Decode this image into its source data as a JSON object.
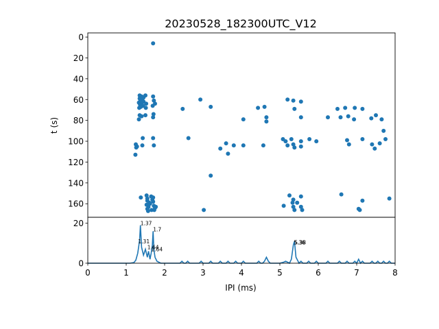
{
  "title": "20230528_182300UTC_V12",
  "colors": {
    "series": "#1f77b4",
    "axes": "#000000"
  },
  "chart_data": [
    {
      "type": "scatter",
      "title": "20230528_182300UTC_V12",
      "ylabel": "t (s)",
      "xlabel": "",
      "xlim": [
        0,
        8
      ],
      "ylim": [
        173,
        -4
      ],
      "y_inverted": true,
      "yticks": [
        "0",
        "20",
        "40",
        "60",
        "80",
        "100",
        "120",
        "140",
        "160"
      ],
      "grid": false,
      "points": [
        [
          1.7,
          6
        ],
        [
          1.35,
          56
        ],
        [
          1.4,
          57
        ],
        [
          1.45,
          58
        ],
        [
          1.35,
          59
        ],
        [
          1.42,
          60
        ],
        [
          1.37,
          61
        ],
        [
          1.45,
          62
        ],
        [
          1.33,
          63
        ],
        [
          1.4,
          64
        ],
        [
          1.36,
          65
        ],
        [
          1.44,
          66
        ],
        [
          1.38,
          67
        ],
        [
          1.34,
          68
        ],
        [
          1.5,
          56
        ],
        [
          1.52,
          64
        ],
        [
          1.51,
          68
        ],
        [
          1.35,
          75
        ],
        [
          1.4,
          76
        ],
        [
          1.5,
          75
        ],
        [
          1.33,
          79
        ],
        [
          1.25,
          103
        ],
        [
          1.28,
          105
        ],
        [
          1.26,
          106
        ],
        [
          1.24,
          113
        ],
        [
          1.43,
          97
        ],
        [
          1.42,
          104
        ],
        [
          1.7,
          97
        ],
        [
          1.72,
          104
        ],
        [
          1.7,
          57
        ],
        [
          1.72,
          61
        ],
        [
          1.75,
          64
        ],
        [
          1.69,
          66
        ],
        [
          1.71,
          74
        ],
        [
          1.7,
          77
        ],
        [
          1.38,
          154
        ],
        [
          1.53,
          152
        ],
        [
          1.55,
          155
        ],
        [
          1.55,
          157
        ],
        [
          1.6,
          159
        ],
        [
          1.53,
          161
        ],
        [
          1.58,
          163
        ],
        [
          1.55,
          165
        ],
        [
          1.57,
          167
        ],
        [
          1.62,
          160
        ],
        [
          1.65,
          153
        ],
        [
          1.68,
          156
        ],
        [
          1.7,
          158
        ],
        [
          1.72,
          162
        ],
        [
          1.75,
          164
        ],
        [
          1.66,
          166
        ],
        [
          1.73,
          166
        ],
        [
          1.77,
          163
        ],
        [
          1.7,
          154
        ],
        [
          2.47,
          69
        ],
        [
          2.62,
          97
        ],
        [
          2.93,
          60
        ],
        [
          3.2,
          67
        ],
        [
          3.2,
          133
        ],
        [
          3.02,
          166
        ],
        [
          3.45,
          107
        ],
        [
          3.6,
          102
        ],
        [
          3.65,
          112
        ],
        [
          3.8,
          104
        ],
        [
          4.05,
          79
        ],
        [
          4.05,
          104
        ],
        [
          4.43,
          68
        ],
        [
          4.57,
          104
        ],
        [
          4.6,
          67
        ],
        [
          4.65,
          77
        ],
        [
          4.65,
          81
        ],
        [
          5.08,
          98
        ],
        [
          5.15,
          100
        ],
        [
          5.2,
          60
        ],
        [
          5.2,
          104
        ],
        [
          5.3,
          98
        ],
        [
          5.35,
          103
        ],
        [
          5.38,
          106
        ],
        [
          5.35,
          61
        ],
        [
          5.38,
          69
        ],
        [
          5.55,
          62
        ],
        [
          5.55,
          77
        ],
        [
          5.55,
          100
        ],
        [
          5.55,
          105
        ],
        [
          5.77,
          98
        ],
        [
          5.95,
          100
        ],
        [
          5.1,
          162
        ],
        [
          5.25,
          152
        ],
        [
          5.35,
          156
        ],
        [
          5.33,
          159
        ],
        [
          5.35,
          163
        ],
        [
          5.38,
          166
        ],
        [
          5.45,
          159
        ],
        [
          5.55,
          153
        ],
        [
          5.55,
          163
        ],
        [
          5.58,
          166
        ],
        [
          6.25,
          77
        ],
        [
          6.5,
          69
        ],
        [
          6.58,
          77
        ],
        [
          6.7,
          68
        ],
        [
          6.75,
          99
        ],
        [
          6.8,
          103
        ],
        [
          6.78,
          76
        ],
        [
          6.93,
          79
        ],
        [
          6.95,
          68
        ],
        [
          7.15,
          69
        ],
        [
          7.15,
          98
        ],
        [
          7.38,
          78
        ],
        [
          7.4,
          103
        ],
        [
          7.47,
          107
        ],
        [
          7.5,
          75
        ],
        [
          7.6,
          102
        ],
        [
          7.65,
          79
        ],
        [
          7.7,
          90
        ],
        [
          7.75,
          98
        ],
        [
          6.6,
          151
        ],
        [
          7.05,
          165
        ],
        [
          7.08,
          166
        ],
        [
          7.15,
          157
        ],
        [
          7.85,
          155
        ]
      ]
    },
    {
      "type": "line",
      "xlabel": "IPI (ms)",
      "ylabel": "",
      "xlim": [
        0,
        8
      ],
      "ylim": [
        0,
        23
      ],
      "xticks": [
        "0",
        "1",
        "2",
        "3",
        "4",
        "5",
        "6",
        "7",
        "8"
      ],
      "yticks": [
        "0",
        "20"
      ],
      "grid": false,
      "x": [
        0,
        1.1,
        1.2,
        1.25,
        1.3,
        1.33,
        1.35,
        1.37,
        1.4,
        1.45,
        1.5,
        1.55,
        1.58,
        1.62,
        1.65,
        1.68,
        1.7,
        1.72,
        1.75,
        1.8,
        1.9,
        2.4,
        2.45,
        2.5,
        2.55,
        2.6,
        2.65,
        2.9,
        2.95,
        3.0,
        3.15,
        3.2,
        3.25,
        3.4,
        3.45,
        3.5,
        3.6,
        3.65,
        3.7,
        3.8,
        3.85,
        3.9,
        4.0,
        4.05,
        4.1,
        4.4,
        4.45,
        4.5,
        4.55,
        4.6,
        4.65,
        4.7,
        4.75,
        5.0,
        5.1,
        5.15,
        5.2,
        5.25,
        5.3,
        5.35,
        5.38,
        5.42,
        5.5,
        5.55,
        5.6,
        5.7,
        5.75,
        5.8,
        5.9,
        5.95,
        6.0,
        6.2,
        6.25,
        6.3,
        6.5,
        6.55,
        6.6,
        6.7,
        6.75,
        6.8,
        6.9,
        6.95,
        7.0,
        7.05,
        7.1,
        7.15,
        7.2,
        7.35,
        7.4,
        7.45,
        7.5,
        7.55,
        7.6,
        7.65,
        7.7,
        7.75,
        7.8,
        7.85,
        7.9,
        8.0
      ],
      "y": [
        0,
        0,
        0.3,
        1.5,
        5,
        9,
        12,
        19,
        8,
        4,
        7,
        3,
        6,
        2,
        5,
        9,
        16,
        7,
        3,
        1,
        0,
        0,
        1,
        0,
        0,
        1,
        0,
        0,
        1,
        0,
        0,
        1,
        0,
        0,
        1,
        0,
        0,
        1,
        0,
        0,
        1,
        0,
        0,
        1,
        0,
        0,
        1,
        0,
        0,
        1,
        3,
        1,
        0,
        0,
        0.5,
        1,
        0.5,
        0,
        2,
        9,
        11,
        3,
        0,
        1,
        0,
        0,
        1,
        0,
        0,
        1,
        0,
        0,
        1,
        0,
        0,
        1,
        0,
        0,
        1,
        0,
        0,
        1,
        0,
        2,
        0,
        1,
        0,
        0,
        1,
        0,
        0,
        1,
        0,
        0,
        1,
        0,
        0,
        1,
        0,
        0
      ],
      "annotations": [
        {
          "text": "1.37",
          "x": 1.37,
          "y": 19
        },
        {
          "text": "1.31",
          "x": 1.31,
          "y": 10
        },
        {
          "text": "1.7",
          "x": 1.7,
          "y": 16
        },
        {
          "text": "1.64",
          "x": 1.55,
          "y": 7
        },
        {
          "text": "1.64",
          "x": 1.65,
          "y": 6
        },
        {
          "text": "5.36",
          "x": 5.36,
          "y": 9.5
        },
        {
          "text": "5.38",
          "x": 5.38,
          "y": 9.5
        }
      ]
    }
  ]
}
